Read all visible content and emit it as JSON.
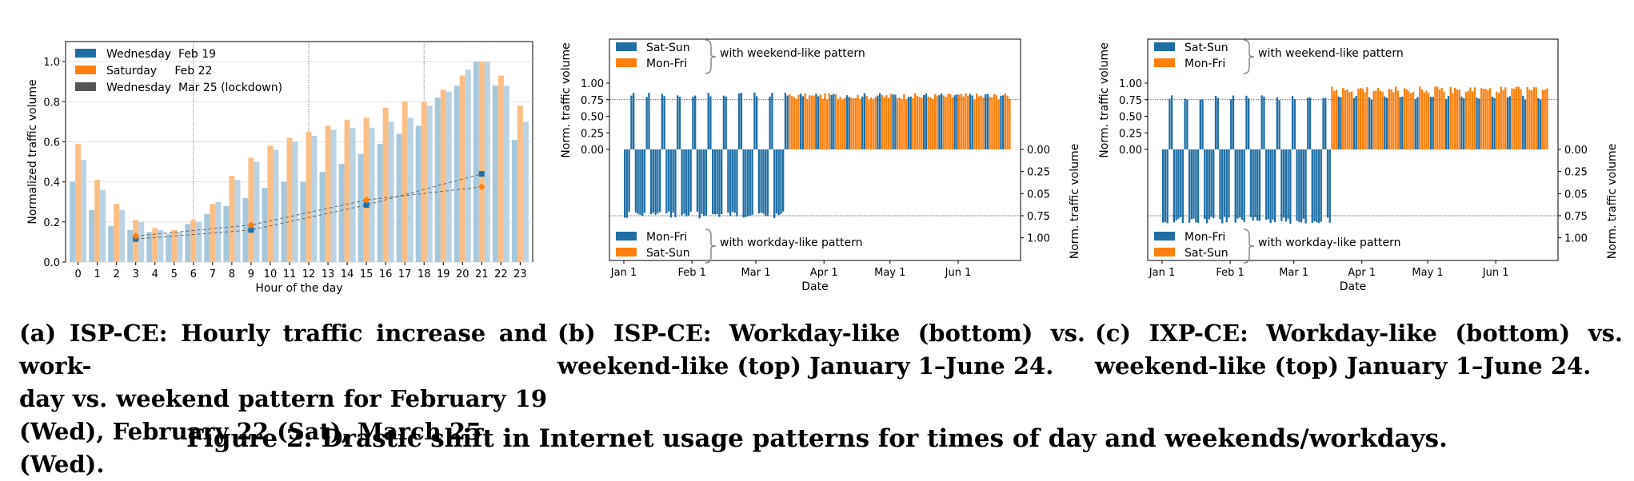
{
  "captions": {
    "a_lines": [
      "(a) ISP-CE: Hourly traffic increase and work-",
      "day vs. weekend pattern for February 19",
      "(Wed), February 22 (Sat), March 25 (Wed)."
    ],
    "b_lines": [
      "(b) ISP-CE: Workday-like (bottom) vs.",
      "weekend-like (top) January 1–June 24."
    ],
    "c_lines": [
      "(c) IXP-CE: Workday-like (bottom) vs.",
      "weekend-like (top) January 1–June 24."
    ],
    "figure": "Figure 2: Drastic shift in Internet usage patterns for times of day and weekends/workdays."
  },
  "colors": {
    "blue": "#1f6fa5",
    "orange": "#ff7f0e",
    "gray": "#555555",
    "light_blue": "#a6c8dd",
    "light_orange": "#fbbf86"
  },
  "chart_data": [
    {
      "id": "a",
      "type": "bar",
      "xlabel": "Hour of the day",
      "ylabel": "Normalized traffic volume",
      "ylim": [
        0,
        1.1
      ],
      "yticks": [
        "0.0",
        "0.2",
        "0.4",
        "0.6",
        "0.8",
        "1.0"
      ],
      "ytick_values": [
        0,
        0.2,
        0.4,
        0.6,
        0.8,
        1.0
      ],
      "categories": [
        "0",
        "1",
        "2",
        "3",
        "4",
        "5",
        "6",
        "7",
        "8",
        "9",
        "10",
        "11",
        "12",
        "13",
        "14",
        "15",
        "16",
        "17",
        "18",
        "19",
        "20",
        "21",
        "22",
        "23"
      ],
      "legend": [
        "Wednesday  Feb 19",
        "Saturday     Feb 22",
        "Wednesday  Mar 25 (lockdown)"
      ],
      "legend_position": "top-left",
      "series": [
        {
          "name": "Wednesday  Feb 19",
          "values": [
            0.4,
            0.26,
            0.18,
            0.16,
            0.15,
            0.14,
            0.19,
            0.24,
            0.28,
            0.32,
            0.37,
            0.4,
            0.4,
            0.45,
            0.49,
            0.54,
            0.59,
            0.64,
            0.68,
            0.82,
            0.88,
            1.0,
            0.88,
            0.61
          ]
        },
        {
          "name": "Saturday     Feb 22",
          "values": [
            0.59,
            0.41,
            0.29,
            0.21,
            0.17,
            0.16,
            0.21,
            0.29,
            0.43,
            0.52,
            0.58,
            0.62,
            0.65,
            0.68,
            0.71,
            0.72,
            0.77,
            0.8,
            0.8,
            0.86,
            0.93,
            1.0,
            0.93,
            0.78
          ]
        },
        {
          "name": "Wednesday  Mar 25 (lockdown)",
          "values": [
            0.51,
            0.36,
            0.26,
            0.2,
            0.16,
            0.15,
            0.2,
            0.3,
            0.41,
            0.5,
            0.56,
            0.6,
            0.63,
            0.66,
            0.67,
            0.67,
            0.7,
            0.72,
            0.78,
            0.85,
            0.96,
            1.0,
            0.88,
            0.7
          ]
        }
      ],
      "trend_points": [
        {
          "series": "Wednesday  Feb 19",
          "x": [
            3,
            9,
            15,
            21
          ],
          "y": [
            0.115,
            0.16,
            0.285,
            0.44
          ]
        },
        {
          "series": "Saturday     Feb 22",
          "x": [
            3,
            9,
            15,
            21
          ],
          "y": [
            0.13,
            0.185,
            0.31,
            0.375
          ]
        }
      ],
      "grid_x": [
        6,
        12,
        18
      ]
    },
    {
      "id": "b",
      "type": "bar",
      "xlabel": "Date",
      "ylabel_left": "Norm. traffic volume",
      "ylabel_right": "Norm. traffic volume",
      "yticks_top": [
        "1.00",
        "0.75",
        "0.50",
        "0.25",
        "0.00"
      ],
      "yticks_bottom": [
        "0.00",
        "0.25",
        "0.05",
        "0.75",
        "1.00"
      ],
      "xticks": [
        "Jan 1",
        "Feb 1",
        "Mar 1",
        "Apr 1",
        "May 1",
        "Jun 1"
      ],
      "legend_top": [
        "Sat-Sun",
        "Mon-Fri"
      ],
      "legend_top_note": "with weekend-like pattern",
      "legend_bottom": [
        "Mon-Fri",
        "Sat-Sun"
      ],
      "legend_bottom_note": "with workday-like pattern",
      "reference_level": 0.75,
      "days": 176,
      "first_weekday": "Wed",
      "lockdown_day": 75,
      "top_blue": 0.82,
      "top_orange": 0.8,
      "bottom_blue": 0.74,
      "bottom_orange": 0.0
    },
    {
      "id": "c",
      "type": "bar",
      "xlabel": "Date",
      "ylabel_left": "Norm. traffic volume",
      "ylabel_right": "Norm. traffic volume",
      "yticks_top": [
        "1.00",
        "0.75",
        "0.50",
        "0.25",
        "0.00"
      ],
      "yticks_bottom": [
        "0.00",
        "0.25",
        "0.05",
        "0.75",
        "1.00"
      ],
      "xticks": [
        "Jan 1",
        "Feb 1",
        "Mar 1",
        "Apr 1",
        "May 1",
        "Jun 1"
      ],
      "legend_top": [
        "Sat-Sun",
        "Mon-Fri"
      ],
      "legend_top_note": "with weekend-like pattern",
      "legend_bottom": [
        "Mon-Fri",
        "Sat-Sun"
      ],
      "legend_bottom_note": "with workday-like pattern",
      "reference_level": 0.75,
      "days": 176,
      "first_weekday": "Wed",
      "lockdown_day": 77,
      "top_blue": 0.78,
      "top_orange": 0.9,
      "bottom_blue": 0.8,
      "bottom_orange": 0.0
    }
  ]
}
